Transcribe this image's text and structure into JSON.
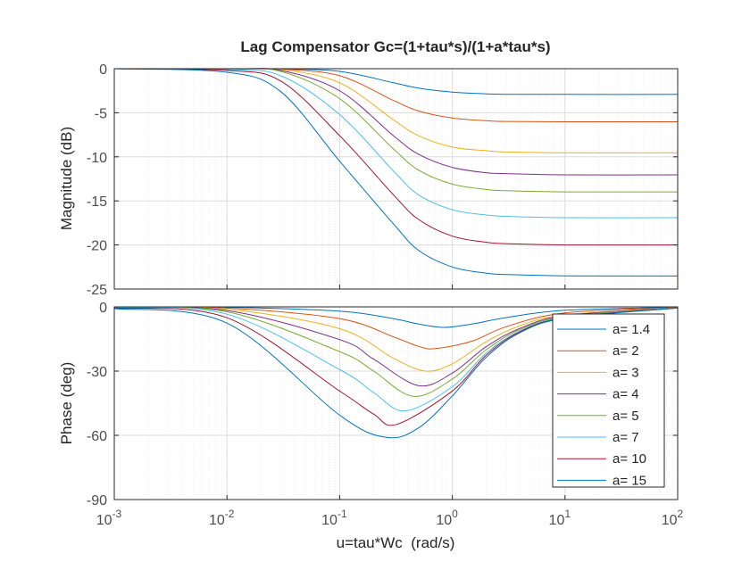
{
  "chart_data": [
    {
      "type": "line",
      "title": "Lag Compensator Gc=(1+tau*s)/(1+a*tau*s)",
      "ylabel": "Magnitude (dB)",
      "xlabel": "",
      "xscale": "log",
      "xlim": [
        0.001,
        100
      ],
      "ylim": [
        -25,
        0
      ],
      "yticks": [
        "0",
        "-5",
        "-10",
        "-15",
        "-20",
        "-25"
      ],
      "grid": true,
      "series": [
        {
          "name": "a= 1.4",
          "a": 1.4,
          "color": "#0072BD",
          "x": [
            0.001,
            0.01,
            0.03,
            0.1,
            0.3,
            0.5,
            1,
            2,
            3,
            10,
            100
          ],
          "y": [
            0,
            -0.01,
            -0.03,
            -0.3,
            -1.6,
            -2.2,
            -2.65,
            -2.85,
            -2.9,
            -2.92,
            -2.92
          ]
        },
        {
          "name": "a= 2",
          "a": 2,
          "color": "#D95319",
          "x": [
            0.001,
            0.01,
            0.03,
            0.1,
            0.3,
            0.5,
            1,
            2,
            3,
            10,
            100
          ],
          "y": [
            0,
            -0.01,
            -0.05,
            -0.8,
            -3.6,
            -4.8,
            -5.6,
            -5.9,
            -5.98,
            -6.02,
            -6.02
          ]
        },
        {
          "name": "a= 3",
          "a": 3,
          "color": "#EDB120",
          "x": [
            0.001,
            0.01,
            0.03,
            0.1,
            0.3,
            0.5,
            1,
            2,
            3,
            10,
            100
          ],
          "y": [
            0,
            -0.02,
            -0.1,
            -1.6,
            -5.8,
            -7.6,
            -8.9,
            -9.3,
            -9.45,
            -9.54,
            -9.54
          ]
        },
        {
          "name": "a= 4",
          "a": 4,
          "color": "#7E2F8E",
          "x": [
            0.001,
            0.01,
            0.03,
            0.1,
            0.3,
            0.5,
            1,
            2,
            3,
            10,
            100
          ],
          "y": [
            0,
            -0.03,
            -0.2,
            -2.5,
            -7.6,
            -9.7,
            -11.2,
            -11.8,
            -11.9,
            -12.04,
            -12.04
          ]
        },
        {
          "name": "a= 5",
          "a": 5,
          "color": "#77AC30",
          "x": [
            0.001,
            0.01,
            0.03,
            0.1,
            0.3,
            0.5,
            1,
            2,
            3,
            10,
            100
          ],
          "y": [
            0,
            -0.05,
            -0.3,
            -3.4,
            -9.1,
            -11.5,
            -13.1,
            -13.7,
            -13.85,
            -13.98,
            -13.98
          ]
        },
        {
          "name": "a= 7",
          "a": 7,
          "color": "#4DBEEE",
          "x": [
            0.001,
            0.01,
            0.03,
            0.1,
            0.3,
            0.5,
            1,
            2,
            3,
            10,
            100
          ],
          "y": [
            0,
            -0.1,
            -0.8,
            -5.2,
            -11.6,
            -14.3,
            -16.0,
            -16.6,
            -16.75,
            -16.9,
            -16.9
          ]
        },
        {
          "name": "a= 10",
          "a": 10,
          "color": "#A2142F",
          "x": [
            0.001,
            0.01,
            0.03,
            0.1,
            0.3,
            0.5,
            1,
            2,
            3,
            10,
            100
          ],
          "y": [
            0,
            -0.2,
            -1.4,
            -7.6,
            -14.3,
            -17.1,
            -19.0,
            -19.7,
            -19.85,
            -20.0,
            -20.0
          ]
        },
        {
          "name": "a= 15",
          "a": 15,
          "color": "#0072BD",
          "x": [
            0.001,
            0.01,
            0.03,
            0.1,
            0.3,
            0.5,
            1,
            2,
            3,
            10,
            100
          ],
          "y": [
            0,
            -0.4,
            -2.6,
            -10.5,
            -17.6,
            -20.6,
            -22.5,
            -23.2,
            -23.35,
            -23.5,
            -23.52
          ]
        }
      ]
    },
    {
      "type": "line",
      "title": "",
      "ylabel": "Phase (deg)",
      "xlabel": "u=tau*Wc  (rad/s)",
      "xscale": "log",
      "xlim": [
        0.001,
        100
      ],
      "ylim": [
        -90,
        0
      ],
      "yticks": [
        "0",
        "-30",
        "-60",
        "-90"
      ],
      "xticks": [
        {
          "base": "10",
          "exp": "-3"
        },
        {
          "base": "10",
          "exp": "-2"
        },
        {
          "base": "10",
          "exp": "-1"
        },
        {
          "base": "10",
          "exp": "0"
        },
        {
          "base": "10",
          "exp": "1"
        },
        {
          "base": "10",
          "exp": "2"
        }
      ],
      "grid": true,
      "legend": "top-right",
      "series": [
        {
          "name": "a= 1.4",
          "a": 1.4,
          "color": "#0072BD",
          "x": [
            0.001,
            0.01,
            0.1,
            0.3,
            0.5,
            0.85,
            1.5,
            3,
            10,
            100
          ],
          "y": [
            -0.02,
            -0.2,
            -2.0,
            -5.5,
            -8.0,
            -9.6,
            -8.0,
            -5.0,
            -1.6,
            -0.16
          ]
        },
        {
          "name": "a= 2",
          "a": 2,
          "color": "#D95319",
          "x": [
            0.001,
            0.01,
            0.1,
            0.3,
            0.5,
            0.71,
            1.5,
            3,
            10,
            100
          ],
          "y": [
            -0.06,
            -0.6,
            -5.5,
            -14.0,
            -18.4,
            -19.5,
            -16.0,
            -9.3,
            -2.8,
            -0.29
          ]
        },
        {
          "name": "a= 3",
          "a": 3,
          "color": "#EDB120",
          "x": [
            0.001,
            0.01,
            0.1,
            0.3,
            0.58,
            1,
            2,
            4,
            10,
            100
          ],
          "y": [
            -0.11,
            -1.1,
            -10.2,
            -24.0,
            -30.0,
            -26.6,
            -16.3,
            -8.8,
            -3.7,
            -0.38
          ]
        },
        {
          "name": "a= 4",
          "a": 4,
          "color": "#7E2F8E",
          "x": [
            0.001,
            0.01,
            0.1,
            0.2,
            0.5,
            1,
            2,
            4,
            10,
            100
          ],
          "y": [
            -0.17,
            -1.7,
            -15.3,
            -24.4,
            -36.8,
            -30.9,
            -18.6,
            -10.0,
            -4.1,
            -0.43
          ]
        },
        {
          "name": "a= 5",
          "a": 5,
          "color": "#77AC30",
          "x": [
            0.001,
            0.01,
            0.1,
            0.2,
            0.45,
            1,
            2,
            4,
            10,
            100
          ],
          "y": [
            -0.23,
            -2.3,
            -20.9,
            -30.0,
            -41.8,
            -33.7,
            -20.0,
            -10.6,
            -4.5,
            -0.46
          ]
        },
        {
          "name": "a= 7",
          "a": 7,
          "color": "#4DBEEE",
          "x": [
            0.001,
            0.01,
            0.1,
            0.2,
            0.38,
            1,
            2,
            4,
            10,
            100
          ],
          "y": [
            -0.34,
            -3.4,
            -29.3,
            -40.0,
            -48.6,
            -37.3,
            -21.6,
            -11.2,
            -4.9,
            -0.49
          ]
        },
        {
          "name": "a= 10",
          "a": 10,
          "color": "#A2142F",
          "x": [
            0.001,
            0.01,
            0.1,
            0.2,
            0.32,
            1,
            2,
            4,
            10,
            100
          ],
          "y": [
            -0.52,
            -5.1,
            -39.3,
            -50.1,
            -54.9,
            -39.3,
            -22.5,
            -11.6,
            -5.1,
            -0.52
          ]
        },
        {
          "name": "a= 15",
          "a": 15,
          "color": "#0072BD",
          "x": [
            0.001,
            0.01,
            0.1,
            0.26,
            0.5,
            1,
            2,
            4,
            10,
            100
          ],
          "y": [
            -0.8,
            -7.6,
            -50.6,
            -60.9,
            -56.6,
            -41.6,
            -23.5,
            -12.0,
            -5.3,
            -0.53
          ]
        }
      ]
    }
  ]
}
